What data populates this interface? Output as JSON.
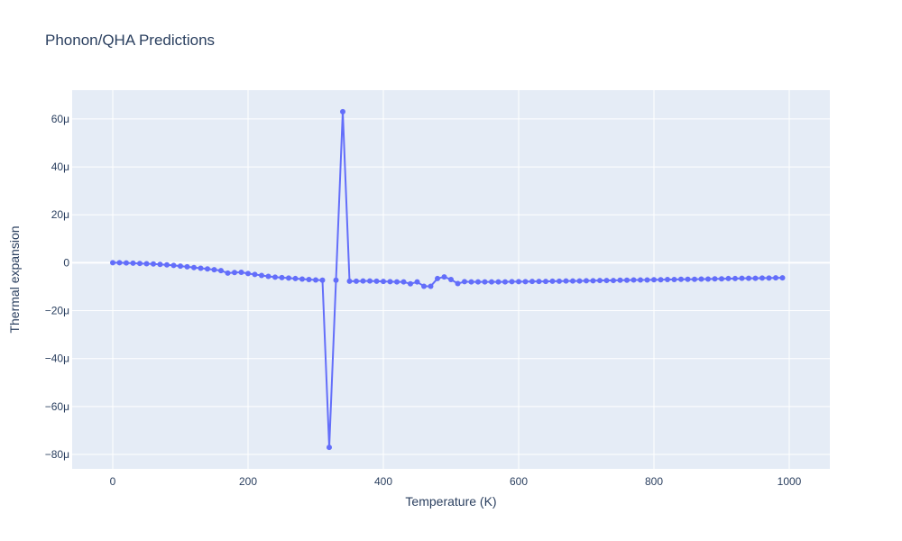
{
  "chart_data": {
    "type": "line",
    "title": "Phonon/QHA Predictions",
    "xlabel": "Temperature (K)",
    "ylabel": "Thermal expansion",
    "xlim": [
      -60,
      1060
    ],
    "ylim": [
      -86,
      72
    ],
    "y_unit_suffix": "μ",
    "x_ticks": [
      0,
      200,
      400,
      600,
      800,
      1000
    ],
    "x_tick_labels": [
      "0",
      "200",
      "400",
      "600",
      "800",
      "1000"
    ],
    "y_ticks": [
      -80,
      -60,
      -40,
      -20,
      0,
      20,
      40,
      60
    ],
    "y_tick_labels": [
      "−80μ",
      "−60μ",
      "−40μ",
      "−20μ",
      "0",
      "20μ",
      "40μ",
      "60μ"
    ],
    "grid": true,
    "series": [
      {
        "color": "#636efa",
        "x": [
          0,
          10,
          20,
          30,
          40,
          50,
          60,
          70,
          80,
          90,
          100,
          110,
          120,
          130,
          140,
          150,
          160,
          170,
          180,
          190,
          200,
          210,
          220,
          230,
          240,
          250,
          260,
          270,
          280,
          290,
          300,
          310,
          320,
          330,
          340,
          350,
          360,
          370,
          380,
          390,
          400,
          410,
          420,
          430,
          440,
          450,
          460,
          470,
          480,
          490,
          500,
          510,
          520,
          530,
          540,
          550,
          560,
          570,
          580,
          590,
          600,
          610,
          620,
          630,
          640,
          650,
          660,
          670,
          680,
          690,
          700,
          710,
          720,
          730,
          740,
          750,
          760,
          770,
          780,
          790,
          800,
          810,
          820,
          830,
          840,
          850,
          860,
          870,
          880,
          890,
          900,
          910,
          920,
          930,
          940,
          950,
          960,
          970,
          980,
          990
        ],
        "y": [
          0,
          0,
          -0.1,
          -0.2,
          -0.3,
          -0.4,
          -0.5,
          -0.7,
          -0.9,
          -1.1,
          -1.4,
          -1.7,
          -2.0,
          -2.3,
          -2.6,
          -2.9,
          -3.3,
          -4.3,
          -4.1,
          -4.0,
          -4.5,
          -4.9,
          -5.3,
          -5.7,
          -6.0,
          -6.2,
          -6.4,
          -6.6,
          -6.8,
          -7.0,
          -7.2,
          -7.3,
          -77.0,
          -7.3,
          63.0,
          -7.7,
          -7.7,
          -7.6,
          -7.6,
          -7.7,
          -7.8,
          -7.9,
          -8.0,
          -8.0,
          -8.8,
          -8.0,
          -9.8,
          -9.8,
          -6.6,
          -5.9,
          -7.0,
          -8.7,
          -7.9,
          -8.0,
          -8.0,
          -8.0,
          -8.0,
          -8.0,
          -8.0,
          -7.9,
          -7.9,
          -7.9,
          -7.8,
          -7.8,
          -7.8,
          -7.7,
          -7.7,
          -7.6,
          -7.6,
          -7.6,
          -7.5,
          -7.5,
          -7.4,
          -7.4,
          -7.4,
          -7.3,
          -7.3,
          -7.2,
          -7.2,
          -7.2,
          -7.1,
          -7.1,
          -7.0,
          -7.0,
          -6.9,
          -6.9,
          -6.9,
          -6.8,
          -6.8,
          -6.7,
          -6.7,
          -6.6,
          -6.6,
          -6.5,
          -6.5,
          -6.5,
          -6.4,
          -6.4,
          -6.3,
          -6.3
        ]
      }
    ]
  }
}
